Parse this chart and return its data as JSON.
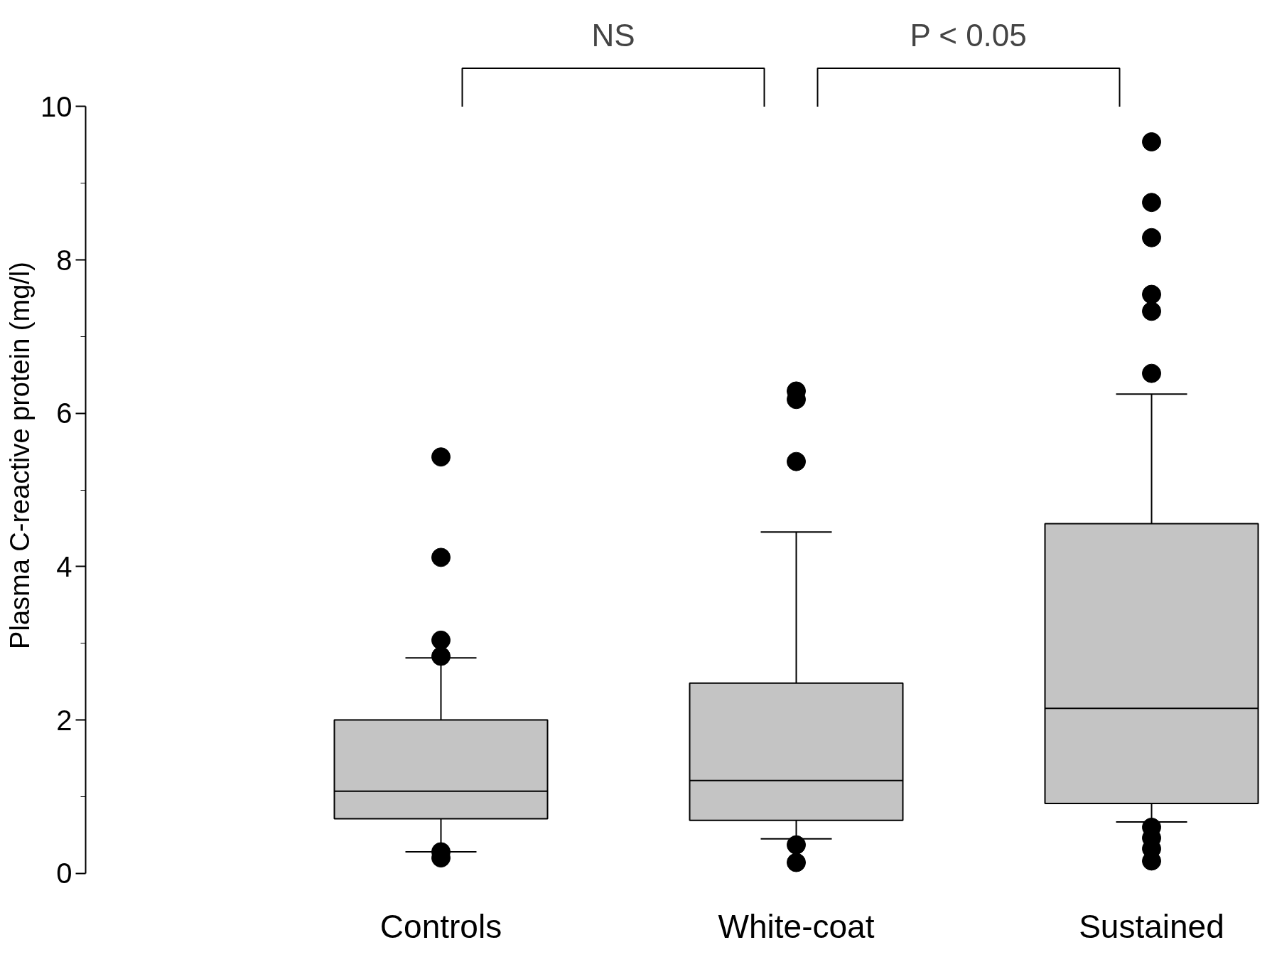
{
  "chart_data": {
    "type": "box",
    "ylabel": "Plasma C-reactive protein (mg/l)",
    "categories": [
      "Controls",
      "White-coat",
      "Sustained"
    ],
    "boxes": [
      {
        "low": 0.28,
        "q1": 0.71,
        "median": 1.07,
        "q3": 2.0,
        "high": 2.81,
        "outliers": [
          5.43,
          4.12,
          3.04,
          2.83,
          0.28,
          0.2
        ]
      },
      {
        "low": 0.45,
        "q1": 0.69,
        "median": 1.21,
        "q3": 2.48,
        "high": 4.45,
        "outliers": [
          6.29,
          6.18,
          5.37,
          0.37,
          0.14
        ]
      },
      {
        "low": 0.67,
        "q1": 0.91,
        "median": 2.15,
        "q3": 4.56,
        "high": 6.25,
        "outliers": [
          9.54,
          8.75,
          8.29,
          7.55,
          7.33,
          6.52,
          0.6,
          0.46,
          0.32,
          0.16
        ]
      }
    ],
    "color": "#c4c4c4",
    "ylim": [
      0,
      10
    ],
    "yticks": [
      0,
      2,
      4,
      6,
      8,
      10
    ],
    "annotations": [
      "NS",
      "P < 0.05"
    ],
    "grid": false
  }
}
